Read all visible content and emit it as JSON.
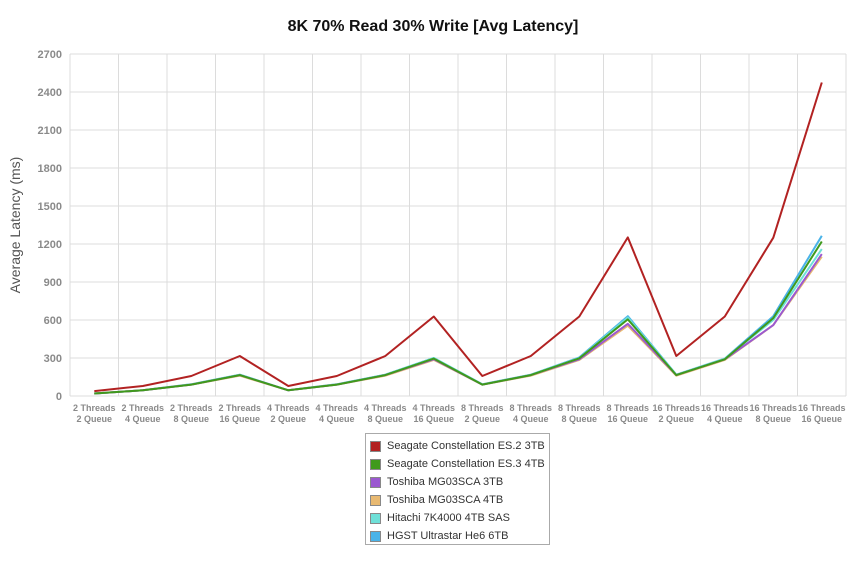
{
  "chart_data": {
    "type": "line",
    "title": "8K 70% Read 30% Write [Avg Latency]",
    "xlabel": "",
    "ylabel": "Average Latency (ms)",
    "ylim": [
      0,
      2700
    ],
    "yticks": [
      0,
      300,
      600,
      900,
      1200,
      1500,
      1800,
      2100,
      2400,
      2700
    ],
    "grid": true,
    "legend_position": "bottom",
    "categories": [
      [
        "2 Threads",
        "2 Queue"
      ],
      [
        "2 Threads",
        "4 Queue"
      ],
      [
        "2 Threads",
        "8 Queue"
      ],
      [
        "2 Threads",
        "16 Queue"
      ],
      [
        "4 Threads",
        "2 Queue"
      ],
      [
        "4 Threads",
        "4 Queue"
      ],
      [
        "4 Threads",
        "8 Queue"
      ],
      [
        "4 Threads",
        "16 Queue"
      ],
      [
        "8 Threads",
        "2 Queue"
      ],
      [
        "8 Threads",
        "4 Queue"
      ],
      [
        "8 Threads",
        "8 Queue"
      ],
      [
        "8 Threads",
        "16 Queue"
      ],
      [
        "16 Threads",
        "2 Queue"
      ],
      [
        "16 Threads",
        "4 Queue"
      ],
      [
        "16 Threads",
        "8 Queue"
      ],
      [
        "16 Threads",
        "16 Queue"
      ]
    ],
    "series": [
      {
        "name": "Seagate Constellation ES.2 3TB",
        "color": "#b22222",
        "values": [
          39,
          79,
          158,
          316,
          79,
          158,
          316,
          628,
          158,
          316,
          628,
          1252,
          316,
          628,
          1250,
          2475
        ]
      },
      {
        "name": "Seagate Constellation ES.3 4TB",
        "color": "#3f9a1c",
        "values": [
          20,
          45,
          90,
          165,
          45,
          90,
          165,
          295,
          90,
          165,
          298,
          605,
          165,
          290,
          615,
          1220
        ]
      },
      {
        "name": "Toshiba MG03SCA 3TB",
        "color": "#9b59d0",
        "values": [
          20,
          45,
          90,
          165,
          45,
          90,
          165,
          290,
          90,
          165,
          290,
          570,
          165,
          290,
          560,
          1120
        ]
      },
      {
        "name": "Toshiba MG03SCA 4TB",
        "color": "#e8b971",
        "values": [
          20,
          45,
          90,
          160,
          45,
          90,
          160,
          285,
          90,
          160,
          285,
          555,
          160,
          285,
          560,
          1100
        ]
      },
      {
        "name": "Hitachi 7K4000 4TB SAS",
        "color": "#6fe0d8",
        "values": [
          20,
          45,
          92,
          168,
          45,
          92,
          168,
          300,
          92,
          168,
          300,
          620,
          168,
          295,
          600,
          1160
        ]
      },
      {
        "name": "HGST Ultrastar He6 6TB",
        "color": "#4ab3e8",
        "values": [
          20,
          45,
          92,
          168,
          45,
          92,
          168,
          300,
          92,
          168,
          305,
          630,
          168,
          295,
          630,
          1265
        ]
      }
    ]
  }
}
